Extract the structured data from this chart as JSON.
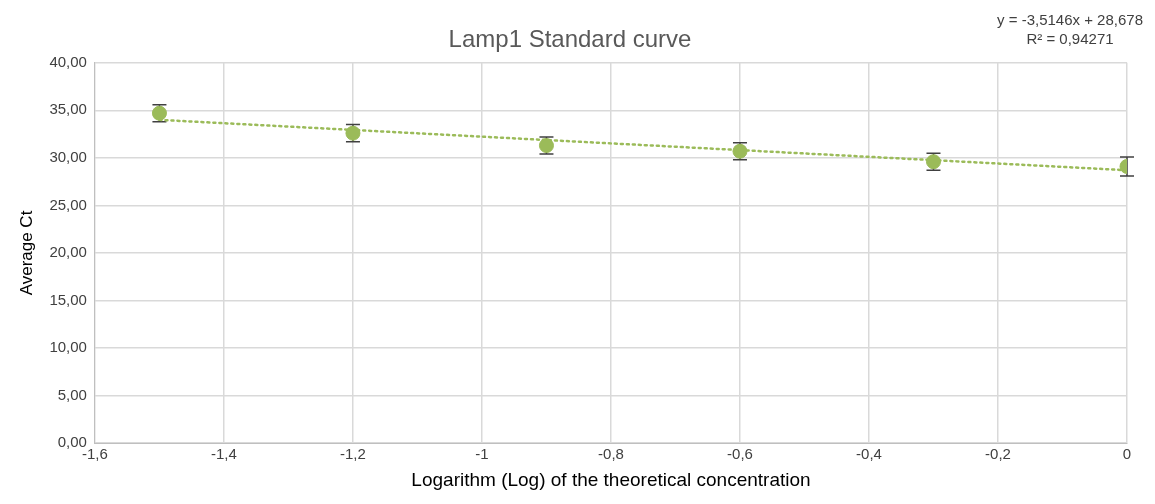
{
  "chart_data": {
    "type": "scatter",
    "title": "Lamp1 Standard curve",
    "xlabel": "Logarithm (Log) of the theoretical concentration",
    "ylabel": "Average Ct",
    "x": [
      -1.5,
      -1.2,
      -0.9,
      -0.6,
      -0.3,
      0
    ],
    "series": [
      {
        "color": "#9bbb59",
        "values": [
          34.7,
          32.6,
          31.3,
          30.7,
          29.6,
          29.1
        ],
        "errors": [
          0.9,
          0.9,
          0.9,
          0.9,
          0.9,
          1.0
        ],
        "marker": "circle"
      },
      {
        "type": "line",
        "color": "#9bbb59",
        "x": [
          -1.5,
          0
        ],
        "values": [
          34.0,
          28.7
        ],
        "line_style": "dotted",
        "marker": "none"
      }
    ],
    "xlim": [
      -1.6,
      0
    ],
    "xticks": [
      {
        "value": -1.6,
        "label": "-1,6"
      },
      {
        "value": -1.4,
        "label": "-1,4"
      },
      {
        "value": -1.2,
        "label": "-1,2"
      },
      {
        "value": -1,
        "label": "-1"
      },
      {
        "value": -0.8,
        "label": "-0,8"
      },
      {
        "value": -0.6,
        "label": "-0,6"
      },
      {
        "value": -0.4,
        "label": "-0,4"
      },
      {
        "value": -0.2,
        "label": "-0,2"
      },
      {
        "value": 0,
        "label": "0"
      }
    ],
    "ylim": [
      0,
      40
    ],
    "yticks": [
      {
        "value": 0,
        "label": "0,00"
      },
      {
        "value": 5,
        "label": "5,00"
      },
      {
        "value": 10,
        "label": "10,00"
      },
      {
        "value": 15,
        "label": "15,00"
      },
      {
        "value": 20,
        "label": "20,00"
      },
      {
        "value": 25,
        "label": "25,00"
      },
      {
        "value": 30,
        "label": "30,00"
      },
      {
        "value": 35,
        "label": "35,00"
      },
      {
        "value": 40,
        "label": "40,00"
      }
    ],
    "grid": true,
    "legend": false,
    "annotations": [
      "y = -3,5146x + 28,678",
      "R² = 0,94271"
    ]
  }
}
